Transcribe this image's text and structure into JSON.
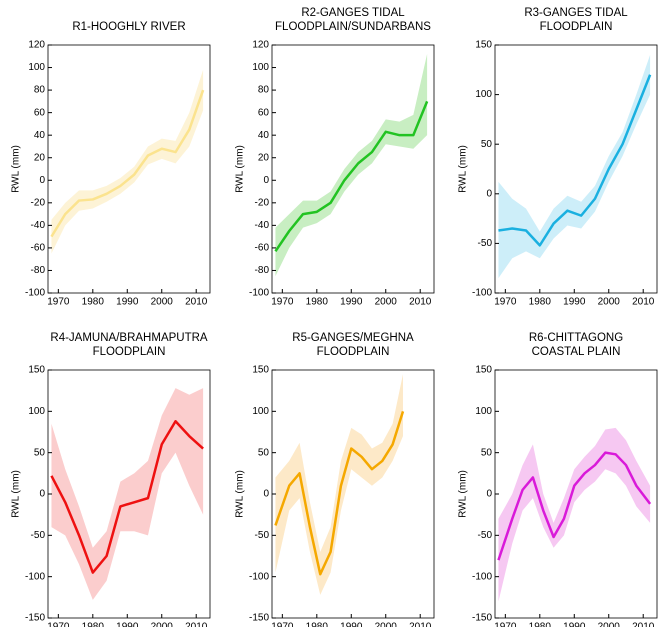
{
  "chart_data": [
    {
      "type": "line",
      "title": [
        "R1-HOOGHLY RIVER"
      ],
      "ylabel": "RWL (mm)",
      "color": "#fbe38e",
      "band_color": "#fdf3d6",
      "x": [
        1968,
        1972,
        1976,
        1980,
        1984,
        1988,
        1992,
        1996,
        2000,
        2004,
        2008,
        2012
      ],
      "values": [
        -50,
        -30,
        -18,
        -17,
        -12,
        -5,
        5,
        22,
        28,
        25,
        45,
        80
      ],
      "lower": [
        -65,
        -40,
        -27,
        -25,
        -19,
        -12,
        -2,
        14,
        19,
        15,
        30,
        62
      ],
      "upper": [
        -35,
        -20,
        -9,
        -9,
        -5,
        2,
        12,
        30,
        37,
        35,
        60,
        98
      ],
      "xlim": [
        1967,
        2014
      ],
      "xticks": [
        1970,
        1980,
        1990,
        2000,
        2010
      ],
      "ylim": [
        -100,
        120
      ],
      "yticks": [
        -100,
        -80,
        -60,
        -40,
        -20,
        0,
        20,
        40,
        60,
        80,
        100,
        120
      ]
    },
    {
      "type": "line",
      "title": [
        "R2-GANGES TIDAL",
        "FLOODPLAIN/SUNDARBANS"
      ],
      "ylabel": "RWL (mm)",
      "color": "#22c322",
      "band_color": "#c8eec2",
      "x": [
        1968,
        1972,
        1976,
        1980,
        1984,
        1988,
        1992,
        1996,
        2000,
        2004,
        2008,
        2012
      ],
      "values": [
        -63,
        -45,
        -30,
        -28,
        -20,
        0,
        15,
        25,
        43,
        40,
        40,
        70
      ],
      "lower": [
        -85,
        -60,
        -42,
        -38,
        -30,
        -10,
        5,
        15,
        32,
        30,
        28,
        40
      ],
      "upper": [
        -42,
        -30,
        -18,
        -18,
        -10,
        10,
        25,
        35,
        54,
        52,
        58,
        112
      ],
      "xlim": [
        1967,
        2014
      ],
      "xticks": [
        1970,
        1980,
        1990,
        2000,
        2010
      ],
      "ylim": [
        -100,
        120
      ],
      "yticks": [
        -100,
        -80,
        -60,
        -40,
        -20,
        0,
        20,
        40,
        60,
        80,
        100,
        120
      ]
    },
    {
      "type": "line",
      "title": [
        "R3-GANGES TIDAL",
        "FLOODPLAIN"
      ],
      "ylabel": "RWL (mm)",
      "color": "#1ab0e0",
      "band_color": "#cdeef9",
      "x": [
        1968,
        1972,
        1976,
        1980,
        1984,
        1988,
        1992,
        1996,
        2000,
        2004,
        2008,
        2012
      ],
      "values": [
        -37,
        -35,
        -37,
        -52,
        -30,
        -17,
        -22,
        -5,
        25,
        50,
        85,
        120
      ],
      "lower": [
        -85,
        -65,
        -58,
        -65,
        -45,
        -32,
        -35,
        -18,
        12,
        38,
        70,
        100
      ],
      "upper": [
        12,
        -5,
        -15,
        -38,
        -15,
        -2,
        -8,
        8,
        38,
        62,
        100,
        140
      ],
      "xlim": [
        1967,
        2014
      ],
      "xticks": [
        1970,
        1980,
        1990,
        2000,
        2010
      ],
      "ylim": [
        -100,
        150
      ],
      "yticks": [
        -100,
        -50,
        0,
        50,
        100,
        150
      ]
    },
    {
      "type": "line",
      "title": [
        "R4-JAMUNA/BRAHMAPUTRA",
        "FLOODPLAIN"
      ],
      "ylabel": "RWL (mm)",
      "color": "#ee1111",
      "band_color": "#fbcdcd",
      "x": [
        1968,
        1972,
        1976,
        1980,
        1984,
        1988,
        1992,
        1996,
        2000,
        2004,
        2008,
        2012
      ],
      "values": [
        22,
        -10,
        -50,
        -95,
        -75,
        -15,
        -10,
        -5,
        60,
        88,
        70,
        55
      ],
      "lower": [
        -40,
        -50,
        -85,
        -128,
        -105,
        -45,
        -45,
        -50,
        25,
        50,
        10,
        -25
      ],
      "upper": [
        85,
        30,
        -15,
        -65,
        -45,
        15,
        25,
        40,
        95,
        128,
        120,
        128
      ],
      "xlim": [
        1967,
        2014
      ],
      "xticks": [
        1970,
        1980,
        1990,
        2000,
        2010
      ],
      "ylim": [
        -150,
        150
      ],
      "yticks": [
        -150,
        -100,
        -50,
        0,
        50,
        100,
        150
      ]
    },
    {
      "type": "line",
      "title": [
        "R5-GANGES/MEGHNA",
        "FLOODPLAIN"
      ],
      "ylabel": "RWL (mm)",
      "color": "#f5a800",
      "band_color": "#fde9c8",
      "x": [
        1968,
        1972,
        1975,
        1978,
        1981,
        1984,
        1987,
        1990,
        1993,
        1996,
        1999,
        2002,
        2005
      ],
      "values": [
        -38,
        10,
        25,
        -40,
        -97,
        -70,
        10,
        55,
        45,
        30,
        40,
        60,
        100
      ],
      "lower": [
        -95,
        -20,
        -5,
        -70,
        -122,
        -95,
        -20,
        30,
        20,
        10,
        20,
        40,
        70
      ],
      "upper": [
        20,
        40,
        62,
        -10,
        -70,
        -40,
        40,
        80,
        72,
        55,
        62,
        85,
        145
      ],
      "xlim": [
        1967,
        2014
      ],
      "xticks": [
        1970,
        1980,
        1990,
        2000,
        2010
      ],
      "ylim": [
        -150,
        150
      ],
      "yticks": [
        -150,
        -100,
        -50,
        0,
        50,
        100,
        150
      ]
    },
    {
      "type": "line",
      "title": [
        "R6-CHITTAGONG",
        "COASTAL PLAIN"
      ],
      "ylabel": "RWL (mm)",
      "color": "#d91ad9",
      "band_color": "#f6c8f2",
      "x": [
        1968,
        1972,
        1975,
        1978,
        1981,
        1984,
        1987,
        1990,
        1993,
        1996,
        1999,
        2002,
        2005,
        2008,
        2012
      ],
      "values": [
        -80,
        -30,
        5,
        20,
        -20,
        -52,
        -30,
        10,
        25,
        35,
        50,
        48,
        35,
        10,
        -12
      ],
      "lower": [
        -130,
        -60,
        -20,
        -5,
        -40,
        -65,
        -50,
        -10,
        5,
        15,
        30,
        25,
        10,
        -15,
        -35
      ],
      "upper": [
        -30,
        0,
        35,
        60,
        0,
        -35,
        -5,
        30,
        45,
        58,
        78,
        80,
        65,
        40,
        10
      ],
      "xlim": [
        1967,
        2014
      ],
      "xticks": [
        1970,
        1980,
        1990,
        2000,
        2010
      ],
      "ylim": [
        -150,
        150
      ],
      "yticks": [
        -150,
        -100,
        -50,
        0,
        50,
        100,
        150
      ]
    }
  ]
}
